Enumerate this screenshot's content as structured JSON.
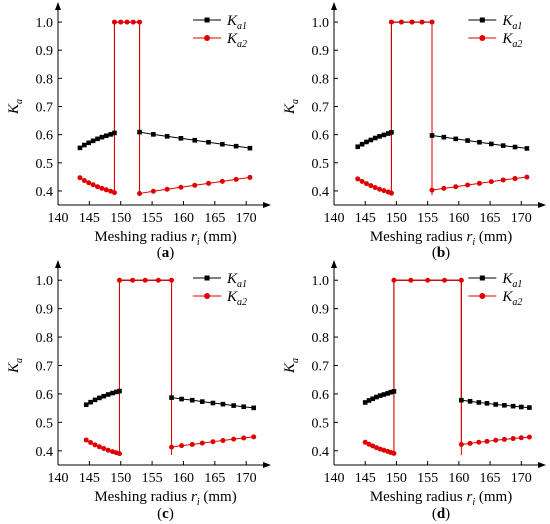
{
  "chart_data": [
    {
      "panel_label": "(a)",
      "type": "line",
      "ylabel": "K",
      "ylabel_sub": "a",
      "xlabel": "Meshing radius r",
      "xlabel_sub": "i",
      "xlabel_unit": "(mm)",
      "xlim": [
        140,
        173
      ],
      "ylim": [
        0.35,
        1.05
      ],
      "xticks": [
        140,
        145,
        150,
        155,
        160,
        165,
        170
      ],
      "yticks": [
        0.4,
        0.5,
        0.6,
        0.7,
        0.8,
        0.9,
        1.0
      ],
      "grid": false,
      "legend_position": "top-right",
      "colors": {
        "ka1": "#000000",
        "ka2": "#e00000"
      },
      "series": [
        {
          "key": "ka1",
          "name": "K",
          "name_sub": "a1",
          "marker": "square",
          "color": "#000000",
          "segments": [
            [
              [
                143.5,
                0.553
              ],
              [
                144.2,
                0.563
              ],
              [
                144.9,
                0.571
              ],
              [
                145.6,
                0.578
              ],
              [
                146.3,
                0.585
              ],
              [
                147.0,
                0.591
              ],
              [
                147.7,
                0.596
              ],
              [
                148.4,
                0.601
              ],
              [
                149.0,
                0.606
              ]
            ],
            [
              [
                149.0,
                1.0
              ],
              [
                150.0,
                1.0
              ],
              [
                151.0,
                1.0
              ],
              [
                152.0,
                1.0
              ],
              [
                153.0,
                1.0
              ]
            ],
            [
              [
                153.0,
                0.609
              ],
              [
                155.2,
                0.601
              ],
              [
                157.4,
                0.594
              ],
              [
                159.6,
                0.587
              ],
              [
                161.8,
                0.58
              ],
              [
                164.0,
                0.573
              ],
              [
                166.2,
                0.566
              ],
              [
                168.4,
                0.559
              ],
              [
                170.6,
                0.552
              ]
            ]
          ]
        },
        {
          "key": "ka2",
          "name": "K",
          "name_sub": "a2",
          "marker": "circle",
          "color": "#e00000",
          "segments": [
            [
              [
                143.5,
                0.447
              ],
              [
                144.2,
                0.437
              ],
              [
                144.9,
                0.429
              ],
              [
                145.6,
                0.422
              ],
              [
                146.3,
                0.415
              ],
              [
                147.0,
                0.409
              ],
              [
                147.7,
                0.404
              ],
              [
                148.4,
                0.399
              ],
              [
                149.0,
                0.394
              ]
            ],
            [
              [
                149.0,
                1.0
              ],
              [
                150.0,
                1.0
              ],
              [
                151.0,
                1.0
              ],
              [
                152.0,
                1.0
              ],
              [
                153.0,
                1.0
              ]
            ],
            [
              [
                153.0,
                0.391
              ],
              [
                155.2,
                0.399
              ],
              [
                157.4,
                0.406
              ],
              [
                159.6,
                0.413
              ],
              [
                161.8,
                0.42
              ],
              [
                164.0,
                0.427
              ],
              [
                166.2,
                0.434
              ],
              [
                168.4,
                0.441
              ],
              [
                170.6,
                0.448
              ]
            ]
          ]
        }
      ]
    },
    {
      "panel_label": "(b)",
      "type": "line",
      "ylabel": "K",
      "ylabel_sub": "a",
      "xlabel": "Meshing radius r",
      "xlabel_sub": "i",
      "xlabel_unit": "(mm)",
      "xlim": [
        140,
        173
      ],
      "ylim": [
        0.35,
        1.05
      ],
      "xticks": [
        140,
        145,
        150,
        155,
        160,
        165,
        170
      ],
      "yticks": [
        0.4,
        0.5,
        0.6,
        0.7,
        0.8,
        0.9,
        1.0
      ],
      "grid": false,
      "legend_position": "top-right",
      "colors": {
        "ka1": "#000000",
        "ka2": "#e00000"
      },
      "series": [
        {
          "key": "ka1",
          "name": "K",
          "name_sub": "a1",
          "marker": "square",
          "color": "#000000",
          "segments": [
            [
              [
                143.8,
                0.557
              ],
              [
                144.5,
                0.566
              ],
              [
                145.2,
                0.574
              ],
              [
                145.9,
                0.581
              ],
              [
                146.6,
                0.588
              ],
              [
                147.3,
                0.594
              ],
              [
                148.0,
                0.599
              ],
              [
                148.7,
                0.604
              ],
              [
                149.2,
                0.608
              ]
            ],
            [
              [
                149.2,
                1.0
              ],
              [
                150.8,
                1.0
              ],
              [
                152.5,
                1.0
              ],
              [
                154.1,
                1.0
              ],
              [
                155.7,
                1.0
              ]
            ],
            [
              [
                155.7,
                0.597
              ],
              [
                157.6,
                0.591
              ],
              [
                159.5,
                0.585
              ],
              [
                161.4,
                0.579
              ],
              [
                163.3,
                0.573
              ],
              [
                165.2,
                0.567
              ],
              [
                167.1,
                0.561
              ],
              [
                169.0,
                0.556
              ],
              [
                170.9,
                0.551
              ]
            ]
          ]
        },
        {
          "key": "ka2",
          "name": "K",
          "name_sub": "a2",
          "marker": "circle",
          "color": "#e00000",
          "segments": [
            [
              [
                143.8,
                0.443
              ],
              [
                144.5,
                0.434
              ],
              [
                145.2,
                0.426
              ],
              [
                145.9,
                0.419
              ],
              [
                146.6,
                0.412
              ],
              [
                147.3,
                0.406
              ],
              [
                148.0,
                0.401
              ],
              [
                148.7,
                0.396
              ],
              [
                149.2,
                0.392
              ]
            ],
            [
              [
                149.2,
                1.0
              ],
              [
                150.8,
                1.0
              ],
              [
                152.5,
                1.0
              ],
              [
                154.1,
                1.0
              ],
              [
                155.7,
                1.0
              ]
            ],
            [
              [
                155.7,
                0.403
              ],
              [
                157.6,
                0.409
              ],
              [
                159.5,
                0.415
              ],
              [
                161.4,
                0.421
              ],
              [
                163.3,
                0.427
              ],
              [
                165.2,
                0.433
              ],
              [
                167.1,
                0.439
              ],
              [
                169.0,
                0.444
              ],
              [
                170.9,
                0.449
              ]
            ]
          ]
        }
      ]
    },
    {
      "panel_label": "(c)",
      "type": "line",
      "ylabel": "K",
      "ylabel_sub": "a",
      "xlabel": "Meshing radius r",
      "xlabel_sub": "i",
      "xlabel_unit": "(mm)",
      "xlim": [
        140,
        173
      ],
      "ylim": [
        0.35,
        1.05
      ],
      "xticks": [
        140,
        145,
        150,
        155,
        160,
        165,
        170
      ],
      "yticks": [
        0.4,
        0.5,
        0.6,
        0.7,
        0.8,
        0.9,
        1.0
      ],
      "grid": false,
      "legend_position": "top-right",
      "colors": {
        "ka1": "#000000",
        "ka2": "#e00000"
      },
      "series": [
        {
          "key": "ka1",
          "name": "K",
          "name_sub": "a1",
          "marker": "square",
          "color": "#000000",
          "segments": [
            [
              [
                144.5,
                0.562
              ],
              [
                145.2,
                0.571
              ],
              [
                145.9,
                0.579
              ],
              [
                146.6,
                0.586
              ],
              [
                147.3,
                0.592
              ],
              [
                148.0,
                0.598
              ],
              [
                148.7,
                0.603
              ],
              [
                149.3,
                0.607
              ],
              [
                149.8,
                0.61
              ]
            ],
            [
              [
                149.8,
                1.0
              ],
              [
                151.9,
                1.0
              ],
              [
                153.9,
                1.0
              ],
              [
                156.0,
                1.0
              ],
              [
                158.1,
                1.0
              ]
            ],
            [
              [
                158.1,
                0.587
              ],
              [
                159.7,
                0.582
              ],
              [
                161.4,
                0.578
              ],
              [
                163.0,
                0.573
              ],
              [
                164.7,
                0.568
              ],
              [
                166.3,
                0.564
              ],
              [
                168.0,
                0.559
              ],
              [
                169.6,
                0.555
              ],
              [
                171.2,
                0.551
              ]
            ]
          ]
        },
        {
          "key": "ka2",
          "name": "K",
          "name_sub": "a2",
          "marker": "circle",
          "color": "#e00000",
          "segments": [
            [
              [
                144.5,
                0.438
              ],
              [
                145.2,
                0.429
              ],
              [
                145.9,
                0.421
              ],
              [
                146.6,
                0.414
              ],
              [
                147.3,
                0.408
              ],
              [
                148.0,
                0.402
              ],
              [
                148.7,
                0.397
              ],
              [
                149.3,
                0.393
              ],
              [
                149.8,
                0.39
              ]
            ],
            [
              [
                149.8,
                1.0
              ],
              [
                151.9,
                1.0
              ],
              [
                153.9,
                1.0
              ],
              [
                156.0,
                1.0
              ],
              [
                158.1,
                1.0
              ]
            ],
            [
              [
                158.1,
                0.413
              ],
              [
                159.7,
                0.418
              ],
              [
                161.4,
                0.422
              ],
              [
                163.0,
                0.427
              ],
              [
                164.7,
                0.432
              ],
              [
                166.3,
                0.436
              ],
              [
                168.0,
                0.441
              ],
              [
                169.6,
                0.445
              ],
              [
                171.2,
                0.449
              ]
            ]
          ]
        }
      ]
    },
    {
      "panel_label": "(d)",
      "type": "line",
      "ylabel": "K",
      "ylabel_sub": "a",
      "xlabel": "Meshing radius r",
      "xlabel_sub": "i",
      "xlabel_unit": "(mm)",
      "xlim": [
        140,
        173
      ],
      "ylim": [
        0.35,
        1.05
      ],
      "xticks": [
        140,
        145,
        150,
        155,
        160,
        165,
        170
      ],
      "yticks": [
        0.4,
        0.5,
        0.6,
        0.7,
        0.8,
        0.9,
        1.0
      ],
      "grid": false,
      "legend_position": "top-right",
      "colors": {
        "ka1": "#000000",
        "ka2": "#e00000"
      },
      "series": [
        {
          "key": "ka1",
          "name": "K",
          "name_sub": "a1",
          "marker": "square",
          "color": "#000000",
          "segments": [
            [
              [
                145.0,
                0.57
              ],
              [
                145.6,
                0.577
              ],
              [
                146.2,
                0.583
              ],
              [
                146.8,
                0.589
              ],
              [
                147.4,
                0.594
              ],
              [
                148.0,
                0.598
              ],
              [
                148.6,
                0.602
              ],
              [
                149.1,
                0.606
              ],
              [
                149.6,
                0.609
              ]
            ],
            [
              [
                149.6,
                1.0
              ],
              [
                152.3,
                1.0
              ],
              [
                155.0,
                1.0
              ],
              [
                157.7,
                1.0
              ],
              [
                160.4,
                1.0
              ]
            ],
            [
              [
                160.4,
                0.578
              ],
              [
                161.8,
                0.574
              ],
              [
                163.2,
                0.57
              ],
              [
                164.5,
                0.567
              ],
              [
                165.9,
                0.563
              ],
              [
                167.3,
                0.56
              ],
              [
                168.7,
                0.557
              ],
              [
                170.0,
                0.554
              ],
              [
                171.3,
                0.552
              ]
            ]
          ]
        },
        {
          "key": "ka2",
          "name": "K",
          "name_sub": "a2",
          "marker": "circle",
          "color": "#e00000",
          "segments": [
            [
              [
                145.0,
                0.43
              ],
              [
                145.6,
                0.423
              ],
              [
                146.2,
                0.417
              ],
              [
                146.8,
                0.411
              ],
              [
                147.4,
                0.406
              ],
              [
                148.0,
                0.402
              ],
              [
                148.6,
                0.398
              ],
              [
                149.1,
                0.394
              ],
              [
                149.6,
                0.391
              ]
            ],
            [
              [
                149.6,
                1.0
              ],
              [
                152.3,
                1.0
              ],
              [
                155.0,
                1.0
              ],
              [
                157.7,
                1.0
              ],
              [
                160.4,
                1.0
              ]
            ],
            [
              [
                160.4,
                0.422
              ],
              [
                161.8,
                0.426
              ],
              [
                163.2,
                0.43
              ],
              [
                164.5,
                0.433
              ],
              [
                165.9,
                0.437
              ],
              [
                167.3,
                0.44
              ],
              [
                168.7,
                0.443
              ],
              [
                170.0,
                0.446
              ],
              [
                171.3,
                0.448
              ]
            ]
          ]
        }
      ]
    }
  ]
}
